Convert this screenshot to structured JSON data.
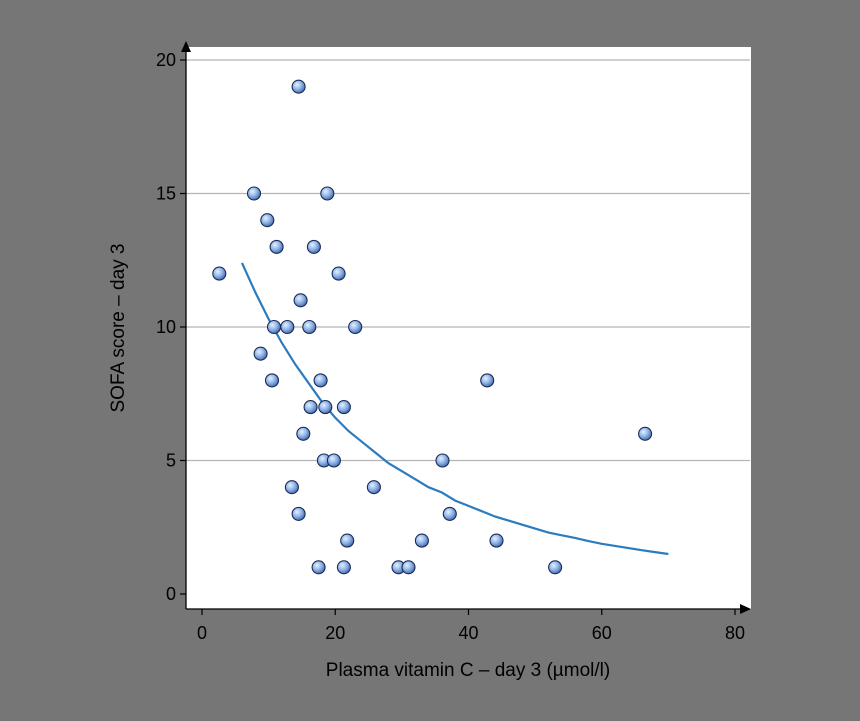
{
  "chart_data": {
    "type": "scatter",
    "title": "",
    "xlabel": "Plasma vitamin C – day 3 (µmol/l)",
    "ylabel": "SOFA score – day 3",
    "xlim": [
      0,
      80
    ],
    "ylim": [
      0,
      20
    ],
    "xticks": [
      0,
      20,
      40,
      60,
      80
    ],
    "yticks": [
      0,
      5,
      10,
      15,
      20
    ],
    "grid": "horizontal",
    "colors": {
      "background": "#767676",
      "plot_area": "#ffffff",
      "gridline": "#b4b4b4",
      "axis": "#000000",
      "point_fill": "#8fb4e8",
      "point_stroke": "#1a2c55",
      "fit_line": "#2b7bbf"
    },
    "series": [
      {
        "name": "patients",
        "points": [
          [
            14.5,
            19
          ],
          [
            7.8,
            15
          ],
          [
            18.8,
            15
          ],
          [
            9.8,
            14
          ],
          [
            11.2,
            13
          ],
          [
            16.8,
            13
          ],
          [
            2.6,
            12
          ],
          [
            20.5,
            12
          ],
          [
            14.8,
            11
          ],
          [
            10.8,
            10
          ],
          [
            12.8,
            10
          ],
          [
            16.1,
            10
          ],
          [
            23.0,
            10
          ],
          [
            8.8,
            9
          ],
          [
            10.5,
            8
          ],
          [
            17.8,
            8
          ],
          [
            42.8,
            8
          ],
          [
            16.3,
            7
          ],
          [
            18.5,
            7
          ],
          [
            21.3,
            7
          ],
          [
            15.2,
            6
          ],
          [
            66.5,
            6
          ],
          [
            18.3,
            5
          ],
          [
            19.8,
            5
          ],
          [
            36.1,
            5
          ],
          [
            13.5,
            4
          ],
          [
            25.8,
            4
          ],
          [
            14.5,
            3
          ],
          [
            37.2,
            3
          ],
          [
            21.8,
            2
          ],
          [
            33.0,
            2
          ],
          [
            44.2,
            2
          ],
          [
            17.5,
            1
          ],
          [
            21.3,
            1
          ],
          [
            29.5,
            1
          ],
          [
            31.0,
            1
          ],
          [
            53.0,
            1
          ]
        ]
      }
    ],
    "fit_curve": {
      "name": "fitted curve",
      "points": [
        [
          6,
          12.4
        ],
        [
          8,
          11.3
        ],
        [
          10,
          10.3
        ],
        [
          12,
          9.4
        ],
        [
          14,
          8.6
        ],
        [
          16,
          7.9
        ],
        [
          18,
          7.2
        ],
        [
          20,
          6.6
        ],
        [
          22,
          6.1
        ],
        [
          24,
          5.7
        ],
        [
          26,
          5.3
        ],
        [
          28,
          4.9
        ],
        [
          30,
          4.6
        ],
        [
          32,
          4.3
        ],
        [
          34,
          4.0
        ],
        [
          36,
          3.8
        ],
        [
          38,
          3.5
        ],
        [
          40,
          3.3
        ],
        [
          42,
          3.1
        ],
        [
          44,
          2.9
        ],
        [
          46,
          2.75
        ],
        [
          48,
          2.6
        ],
        [
          50,
          2.45
        ],
        [
          52,
          2.3
        ],
        [
          54,
          2.2
        ],
        [
          56,
          2.1
        ],
        [
          58,
          1.98
        ],
        [
          60,
          1.88
        ],
        [
          62,
          1.8
        ],
        [
          64,
          1.72
        ],
        [
          66,
          1.64
        ],
        [
          68,
          1.57
        ],
        [
          70,
          1.5
        ]
      ]
    }
  }
}
